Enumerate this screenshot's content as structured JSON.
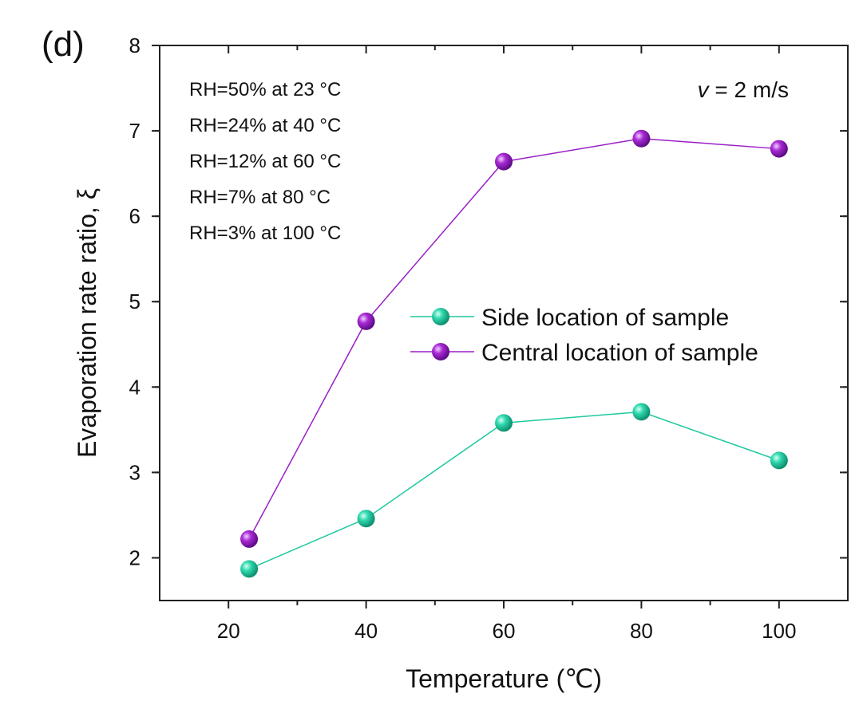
{
  "panel_label": "(d)",
  "velocity": {
    "symbol": "v",
    "rest": " = 2 m/s"
  },
  "conditions": [
    "RH=50% at 23 °C",
    "RH=24% at 40 °C",
    "RH=12% at 60 °C",
    "RH=7% at 80 °C",
    "RH=3% at 100 °C"
  ],
  "colors": {
    "side": "#1ec9a0",
    "central": "#9a1fc6",
    "axis": "#222222"
  },
  "chart_data": {
    "type": "line",
    "title": "",
    "xlabel": "Temperature (℃)",
    "ylabel": "Evaporation rate ratio, ξ",
    "xlim": [
      10,
      110
    ],
    "ylim": [
      1.5,
      8
    ],
    "xticks": [
      20,
      40,
      60,
      80,
      100
    ],
    "yticks": [
      2,
      3,
      4,
      5,
      6,
      7,
      8
    ],
    "x": [
      23,
      40,
      60,
      80,
      100
    ],
    "series": [
      {
        "name": "Side location of sample",
        "color_key": "side",
        "values": [
          1.87,
          2.46,
          3.58,
          3.71,
          3.14
        ]
      },
      {
        "name": "Central location of sample",
        "color_key": "central",
        "values": [
          2.22,
          4.77,
          6.64,
          6.91,
          6.79
        ]
      }
    ],
    "legend_position": "center-right"
  }
}
